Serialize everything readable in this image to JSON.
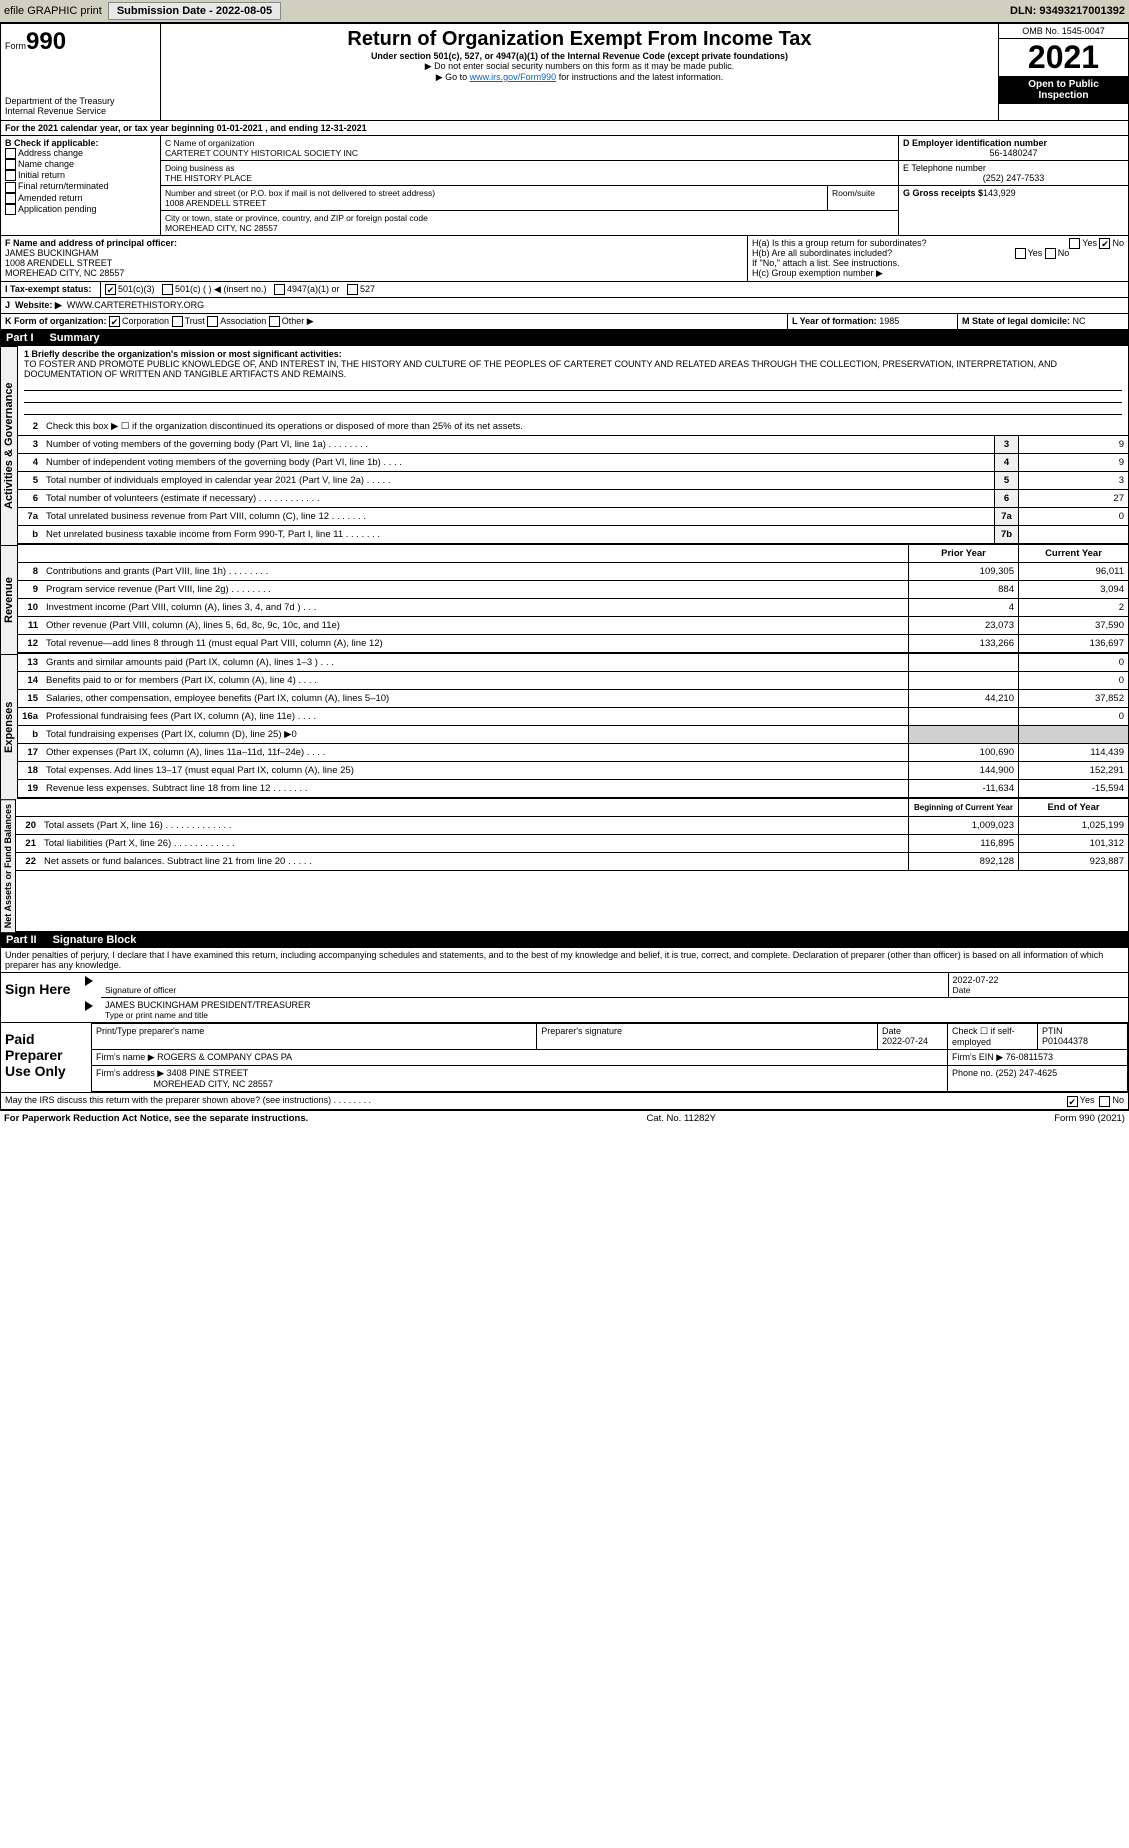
{
  "topbar": {
    "efile": "efile GRAPHIC print",
    "submission_label": "Submission Date - 2022-08-05",
    "dln": "DLN: 93493217001392"
  },
  "header": {
    "form_label": "Form",
    "form_no": "990",
    "dept": "Department of the Treasury",
    "irs": "Internal Revenue Service",
    "title": "Return of Organization Exempt From Income Tax",
    "sub": "Under section 501(c), 527, or 4947(a)(1) of the Internal Revenue Code (except private foundations)",
    "sub2": "▶ Do not enter social security numbers on this form as it may be made public.",
    "sub3_pre": "▶ Go to ",
    "sub3_link": "www.irs.gov/Form990",
    "sub3_post": " for instructions and the latest information.",
    "omb": "OMB No. 1545-0047",
    "year": "2021",
    "open": "Open to Public Inspection"
  },
  "line_a": "For the 2021 calendar year, or tax year beginning 01-01-2021    , and ending 12-31-2021",
  "box_b": {
    "title": "B Check if applicable:",
    "items": [
      "Address change",
      "Name change",
      "Initial return",
      "Final return/terminated",
      "Amended return",
      "Application pending"
    ]
  },
  "box_c": {
    "label": "C Name of organization",
    "name": "CARTERET COUNTY HISTORICAL SOCIETY INC",
    "dba_label": "Doing business as",
    "dba": "THE HISTORY PLACE",
    "street_label": "Number and street (or P.O. box if mail is not delivered to street address)",
    "room_label": "Room/suite",
    "street": "1008 ARENDELL STREET",
    "city_label": "City or town, state or province, country, and ZIP or foreign postal code",
    "city": "MOREHEAD CITY, NC  28557"
  },
  "box_d": {
    "label": "D Employer identification number",
    "val": "56-1480247"
  },
  "box_e": {
    "label": "E Telephone number",
    "val": "(252) 247-7533"
  },
  "box_g": {
    "label": "G Gross receipts $",
    "val": "143,929"
  },
  "box_f": {
    "label": "F Name and address of principal officer:",
    "name": "JAMES BUCKINGHAM",
    "addr1": "1008 ARENDELL STREET",
    "addr2": "MOREHEAD CITY, NC  28557"
  },
  "box_h": {
    "ha": "H(a)  Is this a group return for subordinates?",
    "hb": "H(b)  Are all subordinates included?",
    "note": "If \"No,\" attach a list. See instructions.",
    "hc": "H(c)  Group exemption number ▶",
    "yes": "Yes",
    "no": "No"
  },
  "box_i": {
    "label": "Tax-exempt status:",
    "o1": "501(c)(3)",
    "o2": "501(c) (  ) ◀ (insert no.)",
    "o3": "4947(a)(1) or",
    "o4": "527"
  },
  "box_j": {
    "label": "Website: ▶",
    "val": "WWW.CARTERETHISTORY.ORG"
  },
  "box_k": {
    "label": "K Form of organization:",
    "o1": "Corporation",
    "o2": "Trust",
    "o3": "Association",
    "o4": "Other ▶"
  },
  "box_l": {
    "label": "L Year of formation:",
    "val": "1985"
  },
  "box_m": {
    "label": "M State of legal domicile:",
    "val": "NC"
  },
  "part1": {
    "num": "Part I",
    "title": "Summary"
  },
  "mission_label": "1  Briefly describe the organization's mission or most significant activities:",
  "mission": "TO FOSTER AND PROMOTE PUBLIC KNOWLEDGE OF, AND INTEREST IN, THE HISTORY AND CULTURE OF THE PEOPLES OF CARTERET COUNTY AND RELATED AREAS THROUGH THE COLLECTION, PRESERVATION, INTERPRETATION, AND DOCUMENTATION OF WRITTEN AND TANGIBLE ARTIFACTS AND REMAINS.",
  "sides": {
    "ag": "Activities & Governance",
    "rev": "Revenue",
    "exp": "Expenses",
    "na": "Net Assets or Fund Balances"
  },
  "lines_ag": [
    {
      "n": "2",
      "d": "Check this box ▶ ☐  if the organization discontinued its operations or disposed of more than 25% of its net assets."
    },
    {
      "n": "3",
      "d": "Number of voting members of the governing body (Part VI, line 1a)  .    .    .    .    .    .    .    .",
      "b": "3",
      "v": "9"
    },
    {
      "n": "4",
      "d": "Number of independent voting members of the governing body (Part VI, line 1b)  .    .    .    .",
      "b": "4",
      "v": "9"
    },
    {
      "n": "5",
      "d": "Total number of individuals employed in calendar year 2021 (Part V, line 2a)  .    .    .    .    .",
      "b": "5",
      "v": "3"
    },
    {
      "n": "6",
      "d": "Total number of volunteers (estimate if necessary)    .    .    .    .    .    .    .    .    .    .    .    .",
      "b": "6",
      "v": "27"
    },
    {
      "n": "7a",
      "d": "Total unrelated business revenue from Part VIII, column (C), line 12   .    .    .    .    .    .    .",
      "b": "7a",
      "v": "0"
    },
    {
      "n": "b",
      "d": "Net unrelated business taxable income from Form 990-T, Part I, line 11  .    .    .    .    .    .    .",
      "b": "7b",
      "v": ""
    }
  ],
  "col_hdr": {
    "py": "Prior Year",
    "cy": "Current Year"
  },
  "lines_rev": [
    {
      "n": "8",
      "d": "Contributions and grants (Part VIII, line 1h)   .    .    .    .    .    .    .    .",
      "py": "109,305",
      "cy": "96,011"
    },
    {
      "n": "9",
      "d": "Program service revenue (Part VIII, line 2g)   .    .    .    .    .    .    .    .",
      "py": "884",
      "cy": "3,094"
    },
    {
      "n": "10",
      "d": "Investment income (Part VIII, column (A), lines 3, 4, and 7d )   .    .    .",
      "py": "4",
      "cy": "2"
    },
    {
      "n": "11",
      "d": "Other revenue (Part VIII, column (A), lines 5, 6d, 8c, 9c, 10c, and 11e)",
      "py": "23,073",
      "cy": "37,590"
    },
    {
      "n": "12",
      "d": "Total revenue—add lines 8 through 11 (must equal Part VIII, column (A), line 12)",
      "py": "133,266",
      "cy": "136,697"
    }
  ],
  "lines_exp": [
    {
      "n": "13",
      "d": "Grants and similar amounts paid (Part IX, column (A), lines 1–3 )  .    .    .",
      "py": "",
      "cy": "0"
    },
    {
      "n": "14",
      "d": "Benefits paid to or for members (Part IX, column (A), line 4)  .    .    .    .",
      "py": "",
      "cy": "0"
    },
    {
      "n": "15",
      "d": "Salaries, other compensation, employee benefits (Part IX, column (A), lines 5–10)",
      "py": "44,210",
      "cy": "37,852"
    },
    {
      "n": "16a",
      "d": "Professional fundraising fees (Part IX, column (A), line 11e)  .    .    .    .",
      "py": "",
      "cy": "0"
    },
    {
      "n": "b",
      "d": "Total fundraising expenses (Part IX, column (D), line 25) ▶0",
      "py": "shade",
      "cy": "shade"
    },
    {
      "n": "17",
      "d": "Other expenses (Part IX, column (A), lines 11a–11d, 11f–24e)  .    .    .    .",
      "py": "100,690",
      "cy": "114,439"
    },
    {
      "n": "18",
      "d": "Total expenses. Add lines 13–17 (must equal Part IX, column (A), line 25)",
      "py": "144,900",
      "cy": "152,291"
    },
    {
      "n": "19",
      "d": "Revenue less expenses. Subtract line 18 from line 12  .    .    .    .    .    .    .",
      "py": "-11,634",
      "cy": "-15,594"
    }
  ],
  "col_hdr2": {
    "py": "Beginning of Current Year",
    "cy": "End of Year"
  },
  "lines_na": [
    {
      "n": "20",
      "d": "Total assets (Part X, line 16)  .    .    .    .    .    .    .    .    .    .    .    .    .",
      "py": "1,009,023",
      "cy": "1,025,199"
    },
    {
      "n": "21",
      "d": "Total liabilities (Part X, line 26)  .    .    .    .    .    .    .    .    .    .    .    .",
      "py": "116,895",
      "cy": "101,312"
    },
    {
      "n": "22",
      "d": "Net assets or fund balances. Subtract line 21 from line 20  .    .    .    .    .",
      "py": "892,128",
      "cy": "923,887"
    }
  ],
  "part2": {
    "num": "Part II",
    "title": "Signature Block"
  },
  "penalties": "Under penalties of perjury, I declare that I have examined this return, including accompanying schedules and statements, and to the best of my knowledge and belief, it is true, correct, and complete. Declaration of preparer (other than officer) is based on all information of which preparer has any knowledge.",
  "sign": {
    "here": "Sign Here",
    "sig_label": "Signature of officer",
    "date_label": "Date",
    "date": "2022-07-22",
    "name": "JAMES BUCKINGHAM  PRESIDENT/TREASURER",
    "name_label": "Type or print name and title"
  },
  "paid": {
    "label": "Paid Preparer Use Only",
    "c1": "Print/Type preparer's name",
    "c2": "Preparer's signature",
    "c3": "Date",
    "c3v": "2022-07-24",
    "c4": "Check ☐ if self-employed",
    "c5": "PTIN",
    "c5v": "P01044378",
    "firm_label": "Firm's name    ▶",
    "firm": "ROGERS & COMPANY CPAS PA",
    "ein_label": "Firm's EIN ▶",
    "ein": "76-0811573",
    "addr_label": "Firm's address ▶",
    "addr1": "3408 PINE STREET",
    "addr2": "MOREHEAD CITY, NC  28557",
    "phone_label": "Phone no.",
    "phone": "(252) 247-4625"
  },
  "discuss": "May the IRS discuss this return with the preparer shown above? (see instructions)   .    .    .    .    .    .    .    .",
  "footer": {
    "left": "For Paperwork Reduction Act Notice, see the separate instructions.",
    "mid": "Cat. No. 11282Y",
    "right": "Form 990 (2021)"
  }
}
